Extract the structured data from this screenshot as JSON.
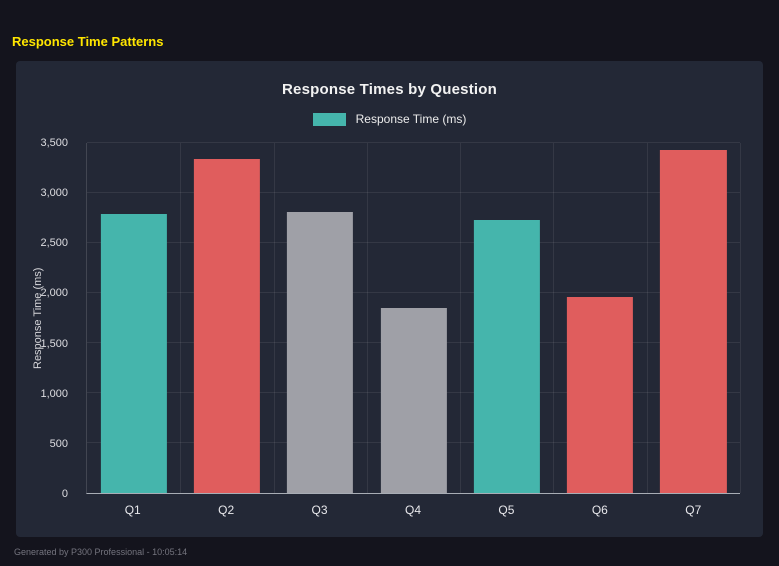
{
  "page": {
    "title": "Response Time Patterns",
    "footer": "Generated by P300 Professional - 10:05:14"
  },
  "colors": {
    "page_background": "#14141d",
    "panel_background": "#232836",
    "accent_yellow": "#ffe600",
    "teal": "#45b5ac",
    "red": "#e05d5d",
    "gray": "#9fa0a7"
  },
  "chart_data": {
    "type": "bar",
    "title": "Response Times by Question",
    "legend_label": "Response Time (ms)",
    "legend_color": "#45b5ac",
    "legend_position": "top",
    "ylabel": "Response Time (ms)",
    "categories": [
      "Q1",
      "Q2",
      "Q3",
      "Q4",
      "Q5",
      "Q6",
      "Q7"
    ],
    "values": [
      2790,
      3340,
      2810,
      1850,
      2730,
      1960,
      3430
    ],
    "bar_colors": [
      "#45b5ac",
      "#e05d5d",
      "#9fa0a7",
      "#9fa0a7",
      "#45b5ac",
      "#e05d5d",
      "#e05d5d"
    ],
    "ylim": [
      0,
      3500
    ],
    "ytick_values": [
      0,
      500,
      1000,
      1500,
      2000,
      2500,
      3000,
      3500
    ],
    "ytick_labels": [
      "0",
      "500",
      "1,000",
      "1,500",
      "2,000",
      "2,500",
      "3,000",
      "3,500"
    ],
    "grid": true
  }
}
